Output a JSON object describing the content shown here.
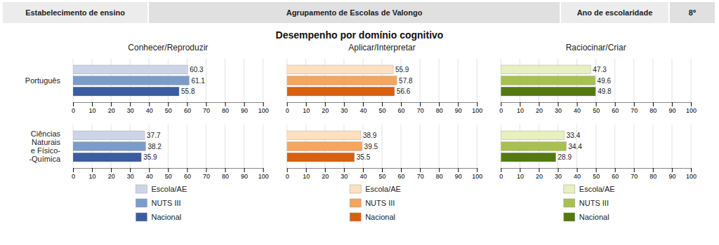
{
  "chart_data": [
    {
      "type": "bar",
      "orientation": "horizontal",
      "title": "Conhecer/Reproduzir",
      "ylabel": "Português",
      "annotations": [
        "Estabelecimento de ensino",
        "Agrupamento de Escolas de Valongo",
        "Ano de escolaridade",
        "8º",
        "Desempenho por domínio cognitivo"
      ],
      "categories": [
        null
      ],
      "series": [
        {
          "name": "Escola/AE",
          "color": "#ccd5e8",
          "values": [
            60.3
          ]
        },
        {
          "name": "NUTS III",
          "color": "#7b9cca",
          "values": [
            61.1
          ]
        },
        {
          "name": "Nacional",
          "color": "#3a5ca0",
          "values": [
            55.8
          ]
        }
      ],
      "xlim": [
        0,
        100
      ],
      "xticks": [
        0,
        10,
        20,
        30,
        40,
        50,
        60,
        70,
        80,
        90,
        100
      ],
      "grid": true,
      "data_labels": true,
      "tick_labels": "x",
      "legend": "bottom"
    },
    {
      "type": "bar",
      "orientation": "horizontal",
      "title": "Aplicar/Interpretar",
      "categories": [
        null
      ],
      "series": [
        {
          "name": "Escola/AE",
          "color": "#fde0c0",
          "values": [
            55.9
          ]
        },
        {
          "name": "NUTS III",
          "color": "#f5a55c",
          "values": [
            57.8
          ]
        },
        {
          "name": "Nacional",
          "color": "#d9600e",
          "values": [
            56.6
          ]
        }
      ],
      "xlim": [
        0,
        100
      ],
      "xticks": [
        0,
        10,
        20,
        30,
        40,
        50,
        60,
        70,
        80,
        90,
        100
      ],
      "grid": true,
      "data_labels": true,
      "tick_labels": "x",
      "legend": "bottom"
    },
    {
      "type": "bar",
      "orientation": "horizontal",
      "title": "Raciocinar/Criar",
      "categories": [
        null
      ],
      "series": [
        {
          "name": "Escola/AE",
          "color": "#e8efc0",
          "values": [
            47.3
          ]
        },
        {
          "name": "NUTS III",
          "color": "#a8c050",
          "values": [
            49.6
          ]
        },
        {
          "name": "Nacional",
          "color": "#527a10",
          "values": [
            49.8
          ]
        }
      ],
      "xlim": [
        0,
        100
      ],
      "xticks": [
        0,
        10,
        20,
        30,
        40,
        50,
        60,
        70,
        80,
        90,
        100
      ],
      "grid": true,
      "data_labels": true,
      "tick_labels": "x",
      "legend": "bottom"
    },
    {
      "type": "bar",
      "orientation": "horizontal",
      "ylabel": "Ciências\nNaturais\ne Físico-\n-Química",
      "categories": [
        null
      ],
      "series": [
        {
          "color": "#ccd5e8",
          "values": [
            37.7
          ]
        },
        {
          "color": "#7b9cca",
          "values": [
            38.2
          ]
        },
        {
          "color": "#3a5ca0",
          "values": [
            35.9
          ]
        }
      ],
      "xlim": [
        0,
        100
      ],
      "xticks": [
        0,
        10,
        20,
        30,
        40,
        50,
        60,
        70,
        80,
        90,
        100
      ],
      "grid": true,
      "data_labels": true,
      "tick_labels": "x"
    },
    {
      "type": "bar",
      "orientation": "horizontal",
      "categories": [
        null
      ],
      "series": [
        {
          "color": "#fde0c0",
          "values": [
            38.9
          ]
        },
        {
          "color": "#f5a55c",
          "values": [
            39.5
          ]
        },
        {
          "color": "#d9600e",
          "values": [
            35.5
          ]
        }
      ],
      "xlim": [
        0,
        100
      ],
      "xticks": [
        0,
        10,
        20,
        30,
        40,
        50,
        60,
        70,
        80,
        90,
        100
      ],
      "grid": true,
      "data_labels": true,
      "tick_labels": "x"
    },
    {
      "type": "bar",
      "orientation": "horizontal",
      "categories": [
        null
      ],
      "series": [
        {
          "color": "#e8efc0",
          "values": [
            33.4
          ]
        },
        {
          "color": "#a8c050",
          "values": [
            34.4
          ]
        },
        {
          "color": "#527a10",
          "values": [
            28.9
          ]
        }
      ],
      "xlim": [
        0,
        100
      ],
      "xticks": [
        0,
        10,
        20,
        30,
        40,
        50,
        60,
        70,
        80,
        90,
        100
      ],
      "grid": true,
      "data_labels": true,
      "tick_labels": "x"
    }
  ]
}
